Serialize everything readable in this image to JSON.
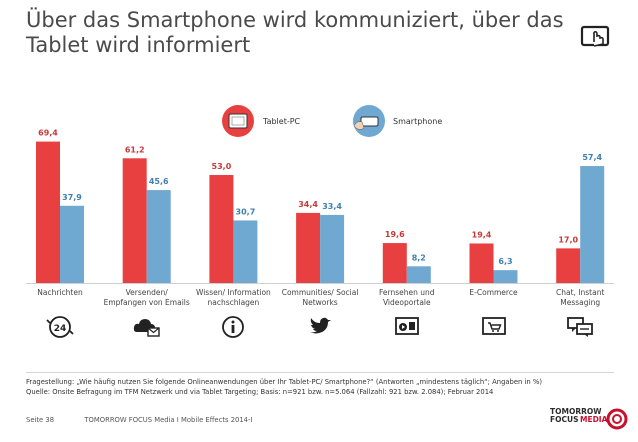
{
  "title": {
    "line1": "Über das Smartphone wird kommuniziert, über das",
    "line2": "Tablet wird informiert"
  },
  "legend": {
    "tablet_label": "Tablet-PC",
    "smartphone_label": "Smartphone"
  },
  "colors": {
    "tablet": "#e84040",
    "smartphone": "#6fa8d0",
    "tablet_label": "#c43a3a",
    "smartphone_label": "#3f7fae"
  },
  "chart_data": {
    "type": "bar",
    "categories": [
      [
        "Nachrichten"
      ],
      [
        "Versenden/",
        "Empfangen von Emails"
      ],
      [
        "Wissen/ Information",
        "nachschlagen"
      ],
      [
        "Communities/ Social",
        "Networks"
      ],
      [
        "Fernsehen und",
        "Videoportale"
      ],
      [
        "E-Commerce"
      ],
      [
        "Chat, Instant",
        "Messaging"
      ]
    ],
    "category_icons": [
      "news-24-icon",
      "cloud-email-icon",
      "info-icon",
      "twitter-bird-icon",
      "video-play-icon",
      "ecommerce-cart-icon",
      "chat-bubbles-icon"
    ],
    "series": [
      {
        "name": "Tablet-PC",
        "values": [
          69.4,
          61.2,
          53.0,
          34.4,
          19.6,
          19.4,
          17.0
        ],
        "labels": [
          "69,4",
          "61,2",
          "53,0",
          "34,4",
          "19,6",
          "19,4",
          "17,0"
        ]
      },
      {
        "name": "Smartphone",
        "values": [
          37.9,
          45.6,
          30.7,
          33.4,
          8.2,
          6.3,
          57.4
        ],
        "labels": [
          "37,9",
          "45,6",
          "30,7",
          "33,4",
          "8,2",
          "6,3",
          "57,4"
        ]
      }
    ],
    "ylim": [
      0,
      80
    ],
    "grid": false,
    "legend_position": "top-center"
  },
  "footer": {
    "question": "Fragestellung: „Wie häufig nutzen Sie folgende Onlineanwendungen über Ihr Tablet-PC/ Smartphone?“ (Antworten „mindestens täglich“; Angaben in %)",
    "source": "Quelle: Onsite Befragung im TFM Netzwerk und via Tablet Targeting; Basis: n=921 bzw. n=5.064 (Fallzahl: 921 bzw. 2.084); Februar 2014",
    "page": "Seite 38",
    "report": "TOMORROW FOCUS Media  I  Mobile Effects 2014-I"
  },
  "logo": {
    "line1": "TOMORROW",
    "line2a": "FOCUS",
    "line2b": "MEDIA"
  }
}
